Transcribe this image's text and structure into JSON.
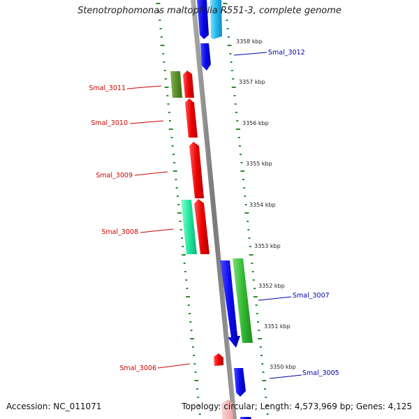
{
  "title": "Stenotrophomonas maltophilia R551-3, complete genome",
  "footer": {
    "accession_label": "Accession:",
    "accession": "NC_011071",
    "topology_label": "Topology:",
    "topology": "circular",
    "length_label": "Length:",
    "length": "4,573,969 bp",
    "genes_label": "Genes:",
    "genes": "4,125"
  },
  "colors": {
    "backbone": "#8a8a8a",
    "ticks": "#2e8b2e",
    "label_left": "#cc0000",
    "label_right": "#0000aa",
    "red": "#ee0000",
    "blue": "#0a0aee",
    "olive": "#5a8f2a",
    "green": "#33bb33",
    "teal": "#22e8a0",
    "cyan": "#22bbee",
    "pink": "#f6b3b3"
  },
  "ticks": [
    {
      "label": "3358 kbp"
    },
    {
      "label": "3357 kbp"
    },
    {
      "label": "3356 kbp"
    },
    {
      "label": "3355 kbp"
    },
    {
      "label": "3354 kbp"
    },
    {
      "label": "3353 kbp"
    },
    {
      "label": "3352 kbp"
    },
    {
      "label": "3351 kbp"
    },
    {
      "label": "3350 kbp"
    }
  ],
  "features": [
    {
      "label": "Smal_3012"
    },
    {
      "label": "Smal_3011"
    },
    {
      "label": "Smal_3010"
    },
    {
      "label": "Smal_3009"
    },
    {
      "label": "Smal_3008"
    },
    {
      "label": "Smal_3007"
    },
    {
      "label": "Smal_3006"
    },
    {
      "label": "Smal_3005"
    }
  ]
}
